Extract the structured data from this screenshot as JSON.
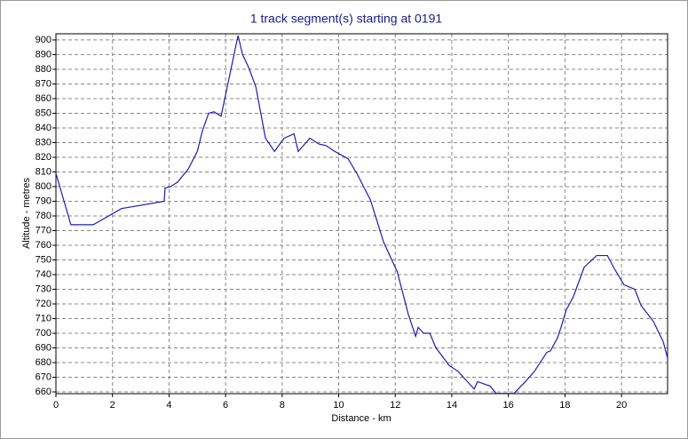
{
  "chart_data": {
    "type": "line",
    "title": "1 track segment(s) starting at 0191",
    "xlabel": "Distance - km",
    "ylabel": "Altitude - metres",
    "x": [
      0,
      0.53,
      1.32,
      2.32,
      3.83,
      3.86,
      4.05,
      4.3,
      4.68,
      5.0,
      5.18,
      5.4,
      5.59,
      5.84,
      6.44,
      6.6,
      6.82,
      7.07,
      7.41,
      7.73,
      8.07,
      8.42,
      8.57,
      8.98,
      9.3,
      9.55,
      9.86,
      10.33,
      10.64,
      11.12,
      11.59,
      12.07,
      12.46,
      12.72,
      12.81,
      13.0,
      13.22,
      13.44,
      13.91,
      14.22,
      14.79,
      14.91,
      15.35,
      15.57,
      16.2,
      16.6,
      16.92,
      17.36,
      17.49,
      17.74,
      17.86,
      18.05,
      18.3,
      18.68,
      19.12,
      19.5,
      19.75,
      20.09,
      20.47,
      20.69,
      21.13,
      21.48,
      21.63
    ],
    "values": [
      809,
      774,
      774,
      785,
      790,
      799,
      800,
      803,
      812,
      824,
      838,
      850,
      851,
      848,
      903,
      890,
      881,
      868,
      833,
      824,
      833,
      836,
      824,
      833,
      829,
      828,
      824,
      819,
      809,
      791,
      762,
      742,
      713,
      698,
      704,
      700,
      700,
      690,
      678,
      674,
      662,
      667,
      664,
      659,
      659,
      667,
      674,
      687,
      688,
      697,
      704,
      716,
      725,
      745,
      753,
      753,
      744,
      733,
      730,
      719,
      708,
      694,
      683
    ],
    "color": "#1c1cb4",
    "xlim": [
      0,
      21.63
    ],
    "ylim": [
      658.8,
      904.2
    ],
    "xticks": [
      0,
      2,
      4,
      6,
      8,
      10,
      12,
      14,
      16,
      18,
      20
    ],
    "yticks": [
      660,
      670,
      680,
      690,
      700,
      710,
      720,
      730,
      740,
      750,
      760,
      770,
      780,
      790,
      800,
      810,
      820,
      830,
      840,
      850,
      860,
      870,
      880,
      890,
      900
    ],
    "grid": true
  }
}
